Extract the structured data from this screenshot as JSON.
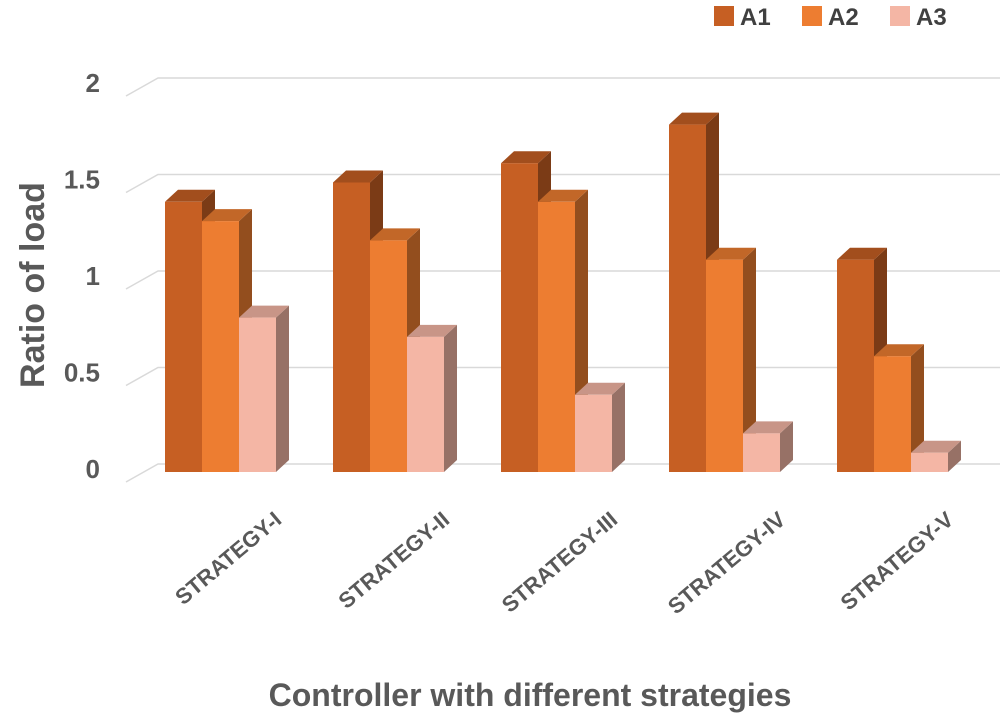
{
  "chart_data": {
    "type": "bar",
    "style": "3d-clustered-column",
    "title": "",
    "xlabel": "Controller with different strategies",
    "ylabel": "Ratio of load",
    "categories": [
      "STRATEGY-I",
      "STRATEGY-II",
      "STRATEGY-III",
      "STRATEGY-IV",
      "STRATEGY-V"
    ],
    "series": [
      {
        "name": "A1",
        "values": [
          1.4,
          1.5,
          1.6,
          1.8,
          1.1
        ],
        "color": "#c65f23"
      },
      {
        "name": "A2",
        "values": [
          1.3,
          1.2,
          1.4,
          1.1,
          0.6
        ],
        "color": "#ed7d31"
      },
      {
        "name": "A3",
        "values": [
          0.8,
          0.7,
          0.4,
          0.2,
          0.1
        ],
        "color": "#f4b6a5"
      }
    ],
    "ylim": [
      0,
      2
    ],
    "yticks": [
      {
        "value": 0,
        "label": "0"
      },
      {
        "value": 0.5,
        "label": "0.5"
      },
      {
        "value": 1,
        "label": "1"
      },
      {
        "value": 1.5,
        "label": "1.5"
      },
      {
        "value": 2,
        "label": "2"
      }
    ],
    "grid": true,
    "legend_position": "top-right"
  }
}
